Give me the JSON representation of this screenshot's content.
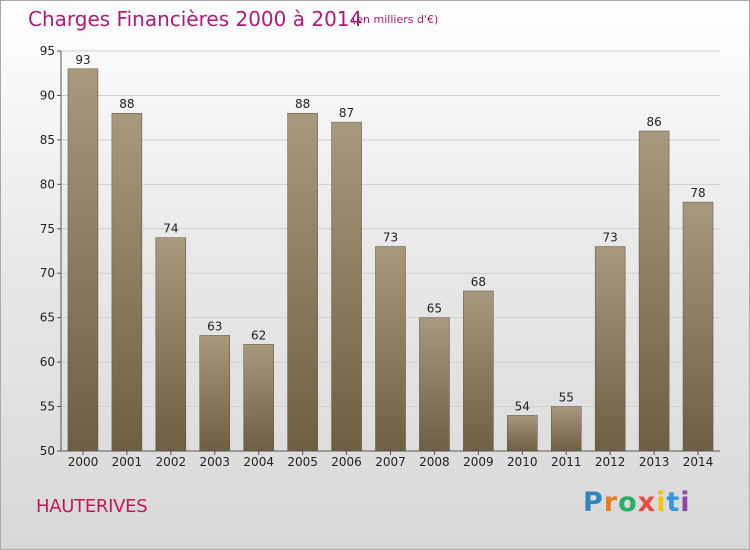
{
  "header": {
    "title": "Charges Financières 2000 à 2014",
    "unit": "(en milliers d'€)"
  },
  "footer": {
    "commune": "HAUTERIVES",
    "brand": {
      "letters": [
        "P",
        "r",
        "o",
        "x",
        "i",
        "t",
        "i"
      ],
      "colors": [
        "#2e86c1",
        "#e67e22",
        "#27ae60",
        "#e74c3c",
        "#f1c40f",
        "#3498db",
        "#8e44ad"
      ]
    }
  },
  "colors": {
    "bar_top": "#a8997e",
    "bar_bottom": "#6e5e42",
    "grid": "#cfcfcf",
    "axis_text": "#222222",
    "title": "#b0197a"
  },
  "chart_data": {
    "type": "bar",
    "title": "Charges Financières 2000 à 2014",
    "subtitle": "(en milliers d'€)",
    "xlabel": "",
    "ylabel": "",
    "categories": [
      "2000",
      "2001",
      "2002",
      "2003",
      "2004",
      "2005",
      "2006",
      "2007",
      "2008",
      "2009",
      "2010",
      "2011",
      "2012",
      "2013",
      "2014"
    ],
    "values": [
      93,
      88,
      74,
      63,
      62,
      88,
      87,
      73,
      65,
      68,
      54,
      55,
      73,
      86,
      78
    ],
    "ylim": [
      50,
      95
    ],
    "yticks": [
      50,
      55,
      60,
      65,
      70,
      75,
      80,
      85,
      90,
      95
    ],
    "grid": true,
    "data_labels": true
  }
}
